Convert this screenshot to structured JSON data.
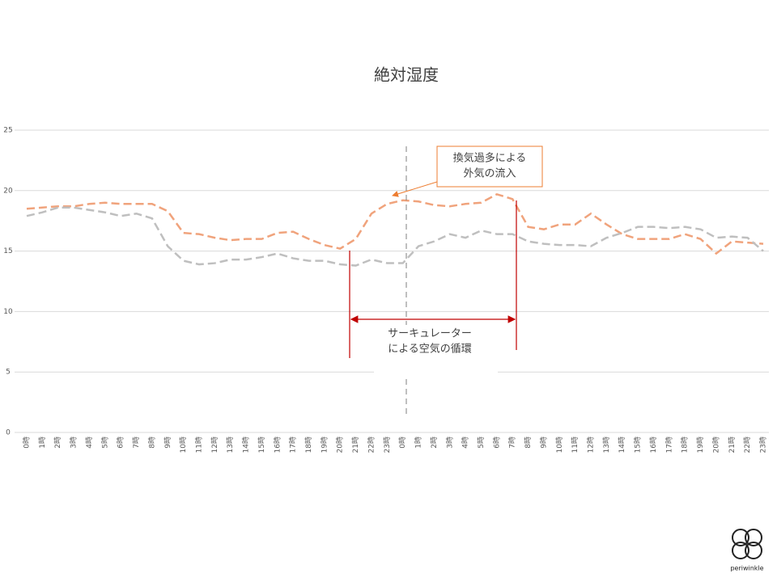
{
  "chart_data": {
    "type": "line",
    "title": "絶対湿度",
    "categories": [
      "0時",
      "1時",
      "2時",
      "3時",
      "4時",
      "5時",
      "6時",
      "7時",
      "8時",
      "9時",
      "10時",
      "11時",
      "12時",
      "13時",
      "14時",
      "15時",
      "16時",
      "17時",
      "18時",
      "19時",
      "20時",
      "21時",
      "22時",
      "23時",
      "0時",
      "1時",
      "2時",
      "3時",
      "4時",
      "5時",
      "6時",
      "7時",
      "8時",
      "9時",
      "10時",
      "11時",
      "12時",
      "13時",
      "14時",
      "15時",
      "16時",
      "17時",
      "18時",
      "19時",
      "20時",
      "21時",
      "22時",
      "23時"
    ],
    "series": [
      {
        "color": "#f0a37c",
        "values": [
          18.5,
          18.6,
          18.7,
          18.7,
          18.9,
          19.0,
          18.9,
          18.9,
          18.9,
          18.3,
          16.5,
          16.4,
          16.1,
          15.9,
          16.0,
          16.0,
          16.5,
          16.6,
          16.0,
          15.5,
          15.2,
          16.0,
          18.1,
          18.9,
          19.2,
          19.1,
          18.8,
          18.7,
          18.9,
          19.0,
          19.7,
          19.3,
          17.0,
          16.8,
          17.2,
          17.2,
          18.1,
          17.2,
          16.4,
          16.0,
          16.0,
          16.0,
          16.4,
          16.0,
          14.8,
          15.8,
          15.7,
          15.6
        ]
      },
      {
        "color": "#bfbfbf",
        "values": [
          17.9,
          18.2,
          18.6,
          18.6,
          18.4,
          18.2,
          17.9,
          18.1,
          17.7,
          15.4,
          14.2,
          13.9,
          14.0,
          14.3,
          14.3,
          14.5,
          14.8,
          14.4,
          14.2,
          14.2,
          13.9,
          13.8,
          14.3,
          14.0,
          14.0,
          15.4,
          15.8,
          16.4,
          16.1,
          16.7,
          16.4,
          16.4,
          15.8,
          15.6,
          15.5,
          15.5,
          15.4,
          16.1,
          16.5,
          17.0,
          17.0,
          16.9,
          17.0,
          16.8,
          16.1,
          16.2,
          16.1,
          15.0
        ]
      }
    ],
    "ylim": [
      0,
      25
    ],
    "yticks": [
      0,
      5,
      10,
      15,
      20,
      25
    ],
    "grid": true,
    "annotations": [
      {
        "lines": [
          "換気過多による",
          "外気の流入"
        ]
      },
      {
        "lines": [
          "サーキュレーター",
          "による空気の循環"
        ]
      }
    ]
  },
  "logo": {
    "text": "periwinkle"
  }
}
